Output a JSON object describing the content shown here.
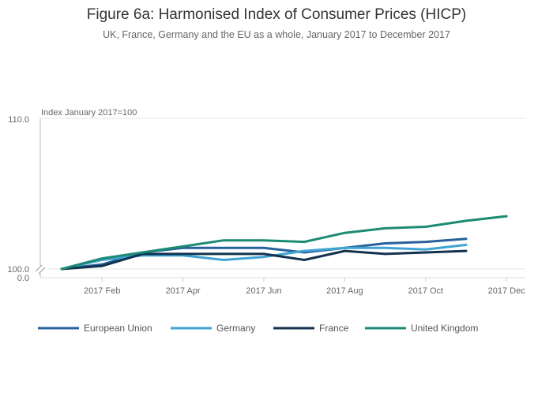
{
  "chart_data": {
    "type": "line",
    "title": "Figure 6a: Harmonised Index of Consumer Prices (HICP)",
    "subtitle": "UK, France, Germany and the EU as a whole, January 2017 to December 2017",
    "ylabel": "Index January 2017=100",
    "xlabel": "",
    "ylim": [
      100,
      110
    ],
    "y_ticks": [
      "110.0",
      "100.0",
      "0.0"
    ],
    "x_ticks": [
      "2017 Feb",
      "2017 Apr",
      "2017 Jun",
      "2017 Aug",
      "2017 Oct",
      "2017 Dec"
    ],
    "grid": true,
    "legend_position": "bottom",
    "x": [
      "2017 Jan",
      "2017 Feb",
      "2017 Mar",
      "2017 Apr",
      "2017 May",
      "2017 Jun",
      "2017 Jul",
      "2017 Aug",
      "2017 Sep",
      "2017 Oct",
      "2017 Nov",
      "2017 Dec"
    ],
    "series": [
      {
        "name": "European Union",
        "color": "#27609a",
        "values": [
          100.0,
          100.3,
          101.1,
          101.4,
          101.4,
          101.4,
          101.1,
          101.4,
          101.7,
          101.8,
          102.0,
          null
        ]
      },
      {
        "name": "Germany",
        "color": "#3fa3d3",
        "values": [
          100.0,
          100.6,
          100.9,
          100.9,
          100.6,
          100.8,
          101.2,
          101.4,
          101.4,
          101.3,
          101.6,
          null
        ]
      },
      {
        "name": "France",
        "color": "#12324f",
        "values": [
          100.0,
          100.2,
          101.0,
          101.0,
          101.0,
          101.0,
          100.6,
          101.2,
          101.0,
          101.1,
          101.2,
          null
        ]
      },
      {
        "name": "United Kingdom",
        "color": "#1c8a74",
        "values": [
          100.0,
          100.7,
          101.1,
          101.5,
          101.9,
          101.9,
          101.8,
          102.4,
          102.7,
          102.8,
          103.2,
          103.5
        ]
      }
    ]
  }
}
